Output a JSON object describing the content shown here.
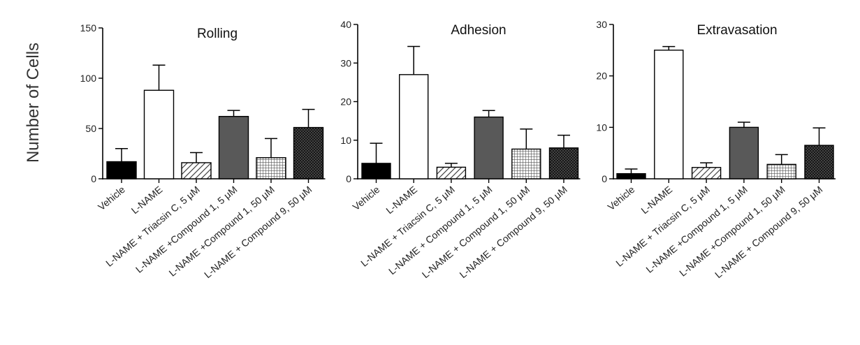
{
  "y_axis_label": "Number of Cells",
  "patterns": {
    "solid-black": "#000000",
    "white": "#ffffff",
    "dark-gray": "#595959",
    "diagonal-hatch": "#333333",
    "grid": "#333333",
    "crosshatch-dark": "#222222"
  },
  "chart_data": [
    {
      "type": "bar",
      "title": "Rolling",
      "ylabel": "Number of Cells",
      "xlabel": "",
      "ylim": [
        0,
        150
      ],
      "yticks": [
        0,
        50,
        100,
        150
      ],
      "categories": [
        "Vehicle",
        "L-NAME",
        "L-NAME + Triacsin C, 5 μM",
        "L-NAME +Compound 1, 5 μM",
        "L-NAME +Compound 1, 50 μM",
        "L-NAME + Compound 9, 50 μM"
      ],
      "values": [
        17,
        88,
        16,
        62,
        21,
        51
      ],
      "errors": [
        13,
        25,
        10,
        6,
        19,
        18
      ],
      "fills": [
        "solid-black",
        "white",
        "diagonal-hatch",
        "dark-gray",
        "grid",
        "crosshatch-dark"
      ]
    },
    {
      "type": "bar",
      "title": "Adhesion",
      "ylabel": "Number of Cells",
      "xlabel": "",
      "ylim": [
        0,
        40
      ],
      "yticks": [
        0,
        10,
        20,
        30,
        40
      ],
      "categories": [
        "Vehicle",
        "L-NAME",
        "L-NAME + Triacsin C, 5 μM",
        "L-NAME + Compound 1, 5 μM",
        "L-NAME + Compound 1, 50 μM",
        "L-NAME + Compound 9, 50 μM"
      ],
      "values": [
        4,
        27,
        3,
        16,
        7.7,
        8
      ],
      "errors": [
        5.2,
        7.3,
        1,
        1.7,
        5.2,
        3.3
      ],
      "fills": [
        "solid-black",
        "white",
        "diagonal-hatch",
        "dark-gray",
        "grid",
        "crosshatch-dark"
      ]
    },
    {
      "type": "bar",
      "title": "Extravasation",
      "ylabel": "Number of Cells",
      "xlabel": "",
      "ylim": [
        0,
        30
      ],
      "yticks": [
        0,
        10,
        20,
        30
      ],
      "categories": [
        "Vehicle",
        "L-NAME",
        "L-NAME + Triacsin C, 5 μM",
        "L-NAME +Compound 1, 5 μM",
        "L-NAME +Compound 1, 50 μM",
        "L-NAME + Compound 9, 50 μM"
      ],
      "values": [
        1,
        25,
        2.2,
        10,
        2.8,
        6.5
      ],
      "errors": [
        0.9,
        0.7,
        0.9,
        1,
        1.9,
        3.4
      ],
      "fills": [
        "solid-black",
        "white",
        "diagonal-hatch",
        "dark-gray",
        "grid",
        "crosshatch-dark"
      ]
    }
  ]
}
